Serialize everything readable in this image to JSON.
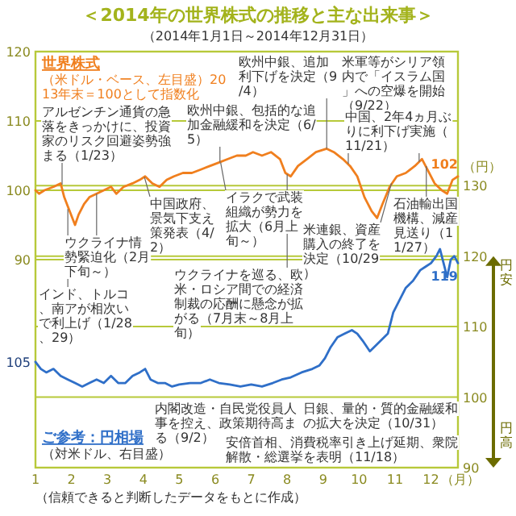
{
  "chart_data": {
    "type": "line",
    "title": "＜2014年の世界株式の推移と主な出来事＞",
    "subtitle": "（2014年1月1日～2014年12月31日）",
    "xlabel": "（月）",
    "y2label": "（円）",
    "xlim": [
      1,
      12.75
    ],
    "xticks": [
      1,
      2,
      3,
      4,
      5,
      6,
      7,
      8,
      9,
      10,
      11,
      12
    ],
    "ylim": [
      60,
      120
    ],
    "yticks": [
      90,
      100,
      110,
      120
    ],
    "y2lim": [
      90,
      149
    ],
    "y2ticks": [
      90,
      100,
      110,
      120,
      130
    ],
    "grid": "y",
    "series": [
      {
        "name": "世界株式",
        "color": "#f07f1e",
        "x": [
          1.0,
          1.1,
          1.25,
          1.5,
          1.7,
          1.8,
          1.95,
          2.1,
          2.2,
          2.35,
          2.5,
          2.7,
          2.9,
          3.1,
          3.25,
          3.45,
          3.7,
          3.9,
          4.05,
          4.25,
          4.45,
          4.65,
          4.85,
          5.1,
          5.35,
          5.6,
          5.85,
          6.1,
          6.35,
          6.6,
          6.85,
          7.05,
          7.3,
          7.55,
          7.8,
          7.95,
          8.1,
          8.3,
          8.55,
          8.8,
          9.1,
          9.3,
          9.55,
          9.75,
          9.95,
          10.15,
          10.35,
          10.5,
          10.65,
          10.85,
          11.05,
          11.3,
          11.55,
          11.75,
          11.9,
          12.1,
          12.3,
          12.45,
          12.6,
          12.75
        ],
        "values": [
          100,
          99.5,
          100,
          100.5,
          101,
          99,
          97,
          95,
          96.5,
          98,
          99,
          99.5,
          100,
          100.5,
          99.5,
          100.5,
          101,
          101.5,
          102,
          101,
          100.5,
          101.5,
          102,
          102.5,
          102.5,
          103,
          103.5,
          104,
          104.5,
          105,
          105,
          105.5,
          105,
          105.5,
          104.5,
          102.5,
          102,
          103.5,
          104.5,
          105.5,
          106,
          105.5,
          104.5,
          103.5,
          102,
          99,
          97,
          96,
          98,
          100.5,
          102,
          102.5,
          103.5,
          104.5,
          103,
          101,
          100,
          99.5,
          101.5,
          102
        ],
        "value_labels": [
          null,
          null,
          null,
          null,
          null,
          null,
          null,
          null,
          null,
          null,
          null,
          null,
          null,
          null,
          null,
          null,
          null,
          null,
          null,
          null,
          null,
          null,
          null,
          null,
          null,
          null,
          null,
          null,
          null,
          null,
          null,
          null,
          null,
          null,
          null,
          null,
          null,
          null,
          null,
          null,
          null,
          null,
          null,
          null,
          null,
          null,
          null,
          null,
          null,
          null,
          null,
          null,
          null,
          null,
          null,
          null,
          null,
          null,
          null,
          "102"
        ]
      },
      {
        "name": "ご参考：円相場",
        "color": "#2f6fc8",
        "axis": "y2",
        "x": [
          1.0,
          1.15,
          1.3,
          1.5,
          1.7,
          1.9,
          2.1,
          2.3,
          2.5,
          2.7,
          2.9,
          3.1,
          3.3,
          3.5,
          3.7,
          3.9,
          4.05,
          4.2,
          4.4,
          4.6,
          4.8,
          5.0,
          5.3,
          5.6,
          5.85,
          6.1,
          6.4,
          6.7,
          7.0,
          7.3,
          7.6,
          7.85,
          8.1,
          8.4,
          8.7,
          8.9,
          9.05,
          9.2,
          9.4,
          9.6,
          9.8,
          9.95,
          10.1,
          10.3,
          10.5,
          10.8,
          10.95,
          11.1,
          11.3,
          11.5,
          11.7,
          11.85,
          12.0,
          12.15,
          12.25,
          12.35,
          12.45,
          12.55,
          12.65,
          12.75
        ],
        "values": [
          105,
          104,
          103.5,
          104,
          103,
          102.5,
          102,
          101.5,
          102,
          102.5,
          102,
          103,
          102,
          102,
          103,
          103.5,
          104,
          102.5,
          102,
          102,
          101.5,
          101.8,
          102,
          102,
          102.5,
          102,
          101.8,
          101.5,
          101.8,
          101.5,
          102,
          102.5,
          102.8,
          103.5,
          104,
          104.5,
          105.5,
          107,
          108.5,
          109,
          109.5,
          109,
          108,
          106.5,
          107.5,
          109,
          112,
          113.5,
          115.5,
          116.5,
          118,
          118.5,
          119,
          120,
          121,
          119,
          117,
          119.5,
          120,
          119
        ],
        "value_labels": [
          "105",
          null,
          null,
          null,
          null,
          null,
          null,
          null,
          null,
          null,
          null,
          null,
          null,
          null,
          null,
          null,
          null,
          null,
          null,
          null,
          null,
          null,
          null,
          null,
          null,
          null,
          null,
          null,
          null,
          null,
          null,
          null,
          null,
          null,
          null,
          null,
          null,
          null,
          null,
          null,
          null,
          null,
          null,
          null,
          null,
          null,
          null,
          null,
          null,
          null,
          null,
          null,
          null,
          null,
          null,
          null,
          null,
          null,
          null,
          "119"
        ]
      }
    ],
    "annotations": [
      {
        "text": "アルゼンチン通貨の急落をきっかけに、投資家のリスク回避姿勢強まる（1/23）",
        "x": 1.74,
        "y": 100.8
      },
      {
        "text": "欧州中銀、包括的な追加金融緩和を決定（6/5）",
        "x": 6.13,
        "y": 104
      },
      {
        "text": "欧州中銀、追加利下げを決定（9/4）",
        "x": 9.1,
        "y": 106
      },
      {
        "text": "米軍等がシリア領内で「イスラム国」への空爆を開始（9/22）",
        "x": 9.7,
        "y": 103.8
      },
      {
        "text": "中国、2年4ヵ月ぶりに利下げ実施（11/21）",
        "x": 11.67,
        "y": 104.1
      },
      {
        "text": "中国政府、景気下支え策発表（4/2）",
        "x": 4.03,
        "y": 101.9
      },
      {
        "text": "ウクライナ情勢緊迫化（2月下旬～）",
        "x": 2.7,
        "y": 99.5
      },
      {
        "text": "イラクで武装組織が勢力を拡大（6月上旬～）",
        "x": 6.15,
        "y": 104
      },
      {
        "text": "インド、トルコ、南アが相次いで利上げ（1/28、29）",
        "x": 1.9,
        "y": 97.3
      },
      {
        "text": "ウクライナを巡る、欧米・ロシア間での経済制裁の応酬に懸念が拡がる（7月末～8月上旬）",
        "x": 8.0,
        "y": 102.3
      },
      {
        "text": "米連銀、資産購入の終了を決定（10/29）",
        "x": 10.9,
        "y": 101
      },
      {
        "text": "石油輸出国機構、減産見送り（11/27）",
        "x": 11.87,
        "y": 103.5
      },
      "内閣改造・自民党役員人事を控え、政策期待高まる（9/2）",
      "日銀、量的・質的金融緩和の拡大を決定（10/31）",
      "安倍首相、消費税率引き上げ延期、衆院解散・総選挙を表明（11/18）",
      "円安",
      "円高",
      "（信頼できると判断したデータをもとに作成）",
      "（米ドル・ベース、左目盛）2013年末＝100として指数化",
      "（対米ドル、右目盛）"
    ]
  }
}
